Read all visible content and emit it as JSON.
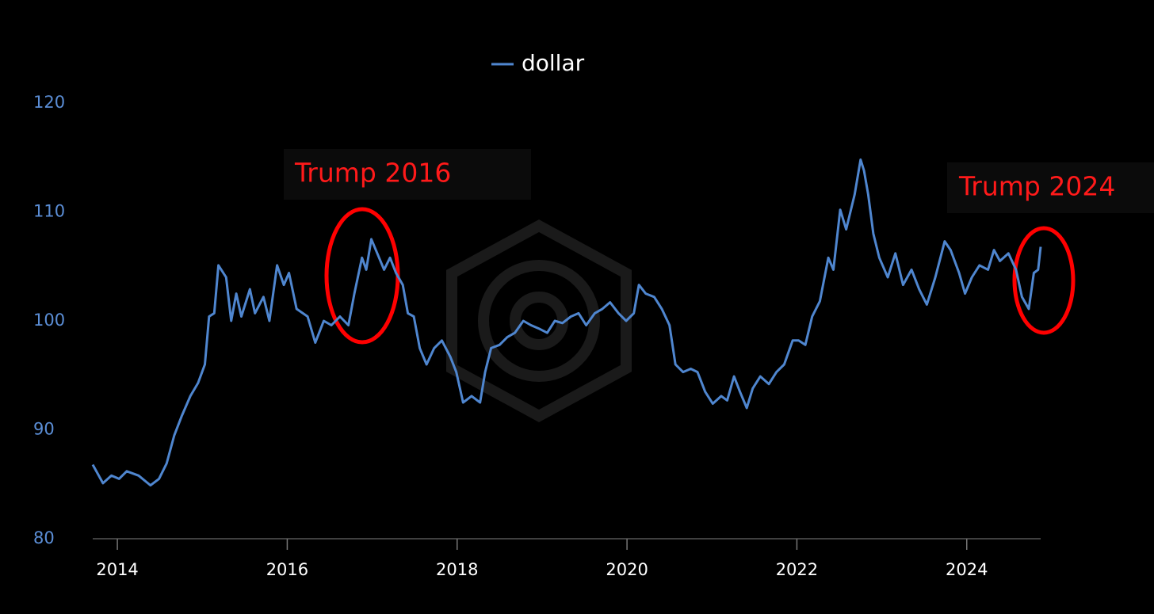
{
  "chart_data": {
    "type": "line",
    "annotations": [
      "Trump 2016",
      "Trump 2024"
    ],
    "x": [
      2013.71,
      2013.83,
      2013.93,
      2014.02,
      2014.11,
      2014.25,
      2014.39,
      2014.49,
      2014.58,
      2014.67,
      2014.76,
      2014.86,
      2014.95,
      2015.03,
      2015.08,
      2015.14,
      2015.19,
      2015.28,
      2015.34,
      2015.4,
      2015.46,
      2015.56,
      2015.62,
      2015.72,
      2015.79,
      2015.88,
      2015.96,
      2016.02,
      2016.11,
      2016.24,
      2016.33,
      2016.43,
      2016.52,
      2016.62,
      2016.72,
      2016.79,
      2016.88,
      2016.93,
      2016.99,
      2017.06,
      2017.14,
      2017.21,
      2017.28,
      2017.36,
      2017.42,
      2017.49,
      2017.56,
      2017.64,
      2017.73,
      2017.82,
      2017.92,
      2017.99,
      2018.07,
      2018.17,
      2018.27,
      2018.33,
      2018.4,
      2018.5,
      2018.59,
      2018.68,
      2018.78,
      2018.87,
      2018.96,
      2019.06,
      2019.15,
      2019.24,
      2019.34,
      2019.43,
      2019.52,
      2019.62,
      2019.71,
      2019.8,
      2019.9,
      2019.99,
      2020.08,
      2020.14,
      2020.22,
      2020.32,
      2020.41,
      2020.5,
      2020.57,
      2020.66,
      2020.75,
      2020.83,
      2020.92,
      2021.01,
      2021.11,
      2021.18,
      2021.26,
      2021.33,
      2021.41,
      2021.48,
      2021.57,
      2021.67,
      2021.76,
      2021.85,
      2021.95,
      2022.02,
      2022.1,
      2022.18,
      2022.27,
      2022.37,
      2022.43,
      2022.51,
      2022.58,
      2022.68,
      2022.75,
      2022.79,
      2022.84,
      2022.9,
      2022.97,
      2023.07,
      2023.16,
      2023.25,
      2023.35,
      2023.44,
      2023.53,
      2023.63,
      2023.74,
      2023.81,
      2023.91,
      2023.98,
      2024.06,
      2024.15,
      2024.25,
      2024.32,
      2024.39,
      2024.49,
      2024.58,
      2024.65,
      2024.73,
      2024.79,
      2024.84,
      2024.87
    ],
    "series": [
      {
        "name": "dollar",
        "color": "#4f86cf",
        "values": [
          86.8,
          85.1,
          85.8,
          85.5,
          86.2,
          85.8,
          84.9,
          85.5,
          86.9,
          89.5,
          91.3,
          93.1,
          94.3,
          96.0,
          100.4,
          100.7,
          105.1,
          104.0,
          100.0,
          102.5,
          100.4,
          102.9,
          100.7,
          102.2,
          100.0,
          105.1,
          103.3,
          104.4,
          101.1,
          100.4,
          98.0,
          100.0,
          99.6,
          100.4,
          99.6,
          102.5,
          105.8,
          104.7,
          107.5,
          106.2,
          104.7,
          105.8,
          104.4,
          103.3,
          100.7,
          100.4,
          97.5,
          96.0,
          97.5,
          98.2,
          96.7,
          95.3,
          92.5,
          93.1,
          92.5,
          95.3,
          97.5,
          97.8,
          98.5,
          98.9,
          100.0,
          99.6,
          99.3,
          98.9,
          100.0,
          99.8,
          100.4,
          100.7,
          99.6,
          100.7,
          101.1,
          101.7,
          100.7,
          100.0,
          100.7,
          103.3,
          102.5,
          102.2,
          101.1,
          99.6,
          96.0,
          95.3,
          95.6,
          95.3,
          93.5,
          92.4,
          93.1,
          92.7,
          94.9,
          93.5,
          92.0,
          93.8,
          94.9,
          94.2,
          95.3,
          96.0,
          98.2,
          98.2,
          97.8,
          100.4,
          101.8,
          105.8,
          104.7,
          110.2,
          108.4,
          111.6,
          114.8,
          113.8,
          111.6,
          108.0,
          105.8,
          104.0,
          106.2,
          103.3,
          104.7,
          102.9,
          101.5,
          104.0,
          107.3,
          106.5,
          104.4,
          102.5,
          104.0,
          105.1,
          104.7,
          106.5,
          105.5,
          106.2,
          104.7,
          102.2,
          101.1,
          104.4,
          104.7,
          106.8
        ]
      }
    ],
    "xlim": [
      2013.71,
      2024.87
    ],
    "xticks": [
      2014,
      2016,
      2018,
      2020,
      2022,
      2024
    ],
    "ylim": [
      80,
      120
    ],
    "yticks": [
      80,
      90,
      100,
      110,
      120
    ],
    "grid": false,
    "legend": "top"
  }
}
